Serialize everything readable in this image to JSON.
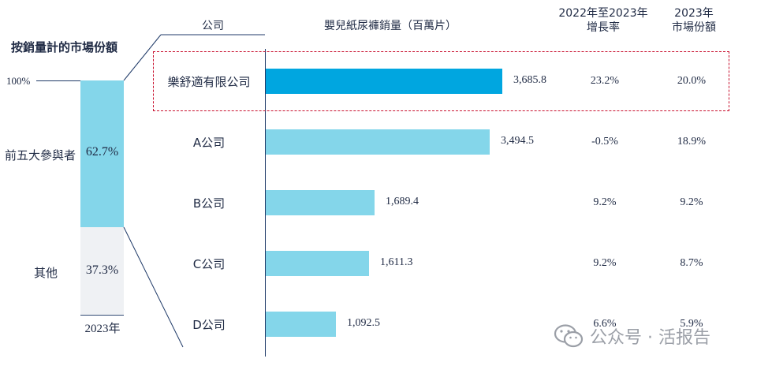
{
  "left_panel": {
    "title": "按銷量計的市場份額",
    "pct_top_label": "100%",
    "year": "2023年",
    "segments": [
      {
        "label": "前五大參與者",
        "value": 62.7,
        "value_text": "62.7%",
        "color": "#84d6ea"
      },
      {
        "label": "其他",
        "value": 37.3,
        "value_text": "37.3%",
        "color": "#eff1f4"
      }
    ]
  },
  "headers": {
    "company": "公司",
    "sales": "嬰兒紙尿褲銷量（百萬片）",
    "growth": [
      "2022年至2023年",
      "增長率"
    ],
    "share": [
      "2023年",
      "市場份額"
    ]
  },
  "chart_data": {
    "type": "bar",
    "orientation": "horizontal",
    "categories": [
      "樂舒適有限公司",
      "A公司",
      "B公司",
      "C公司",
      "D公司"
    ],
    "values": [
      3685.8,
      3494.5,
      1689.4,
      1611.3,
      1092.5
    ],
    "value_labels": [
      "3,685.8",
      "3,494.5",
      "1,689.4",
      "1,611.3",
      "1,092.5"
    ],
    "growth": [
      "23.2%",
      "-0.5%",
      "9.2%",
      "9.2%",
      "6.6%"
    ],
    "market_share": [
      "20.0%",
      "18.9%",
      "9.2%",
      "8.7%",
      "5.9%"
    ],
    "highlight_index": 0,
    "colors": {
      "highlight": "#00a6e0",
      "default": "#84d6ea",
      "highlight_box": "#c8102e"
    }
  },
  "watermark": {
    "text": "公众号 · 活报告",
    "icon": "wechat-icon"
  }
}
